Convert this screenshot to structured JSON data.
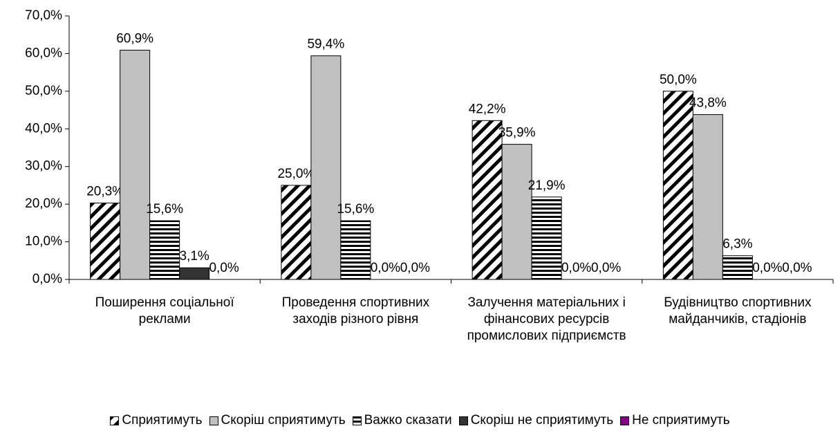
{
  "chart_data": {
    "type": "bar",
    "categories": [
      "Поширення соціальної реклами",
      "Проведення спортивних заходів різного рівня",
      "Залучення матеріальних і фінансових ресурсів промислових підприємств",
      "Будівництво спортивних майданчиків, стадіонів"
    ],
    "series": [
      {
        "name": "Сприятимуть",
        "color": "#000000",
        "pattern": "diagonal",
        "values": [
          20.3,
          25.0,
          42.2,
          50.0
        ],
        "value_labels": [
          "20,3%",
          "25,0%",
          "42,2%",
          "50,0%"
        ]
      },
      {
        "name": "Скоріш сприятимуть",
        "color": "#c0c0c0",
        "values": [
          60.9,
          59.4,
          35.9,
          43.8
        ],
        "value_labels": [
          "60,9%",
          "59,4%",
          "35,9%",
          "43,8%"
        ]
      },
      {
        "name": "Важко сказати",
        "color": "#000000",
        "pattern": "horizontal",
        "values": [
          15.6,
          15.6,
          21.9,
          6.3
        ],
        "value_labels": [
          "15,6%",
          "15,6%",
          "21,9%",
          "6,3%"
        ]
      },
      {
        "name": "Скоріш не сприятимуть",
        "color": "#333333",
        "values": [
          3.1,
          0.0,
          0.0,
          0.0
        ],
        "value_labels": [
          "3,1%",
          "0,0%",
          "0,0%",
          "0,0%"
        ]
      },
      {
        "name": "Не сприятимуть",
        "color": "#800080",
        "values": [
          0.0,
          0.0,
          0.0,
          0.0
        ],
        "value_labels": [
          "0,0%",
          "0,0%",
          "0,0%",
          "0,0%"
        ]
      }
    ],
    "ylim": [
      0,
      70
    ],
    "yticks": [
      {
        "value": 0,
        "label": "0,0%"
      },
      {
        "value": 10,
        "label": "10,0%"
      },
      {
        "value": 20,
        "label": "20,0%"
      },
      {
        "value": 30,
        "label": "30,0%"
      },
      {
        "value": 40,
        "label": "40,0%"
      },
      {
        "value": 50,
        "label": "50,0%"
      },
      {
        "value": 60,
        "label": "60,0%"
      },
      {
        "value": 70,
        "label": "70,0%"
      }
    ],
    "grid": false,
    "legend": "bottom"
  }
}
